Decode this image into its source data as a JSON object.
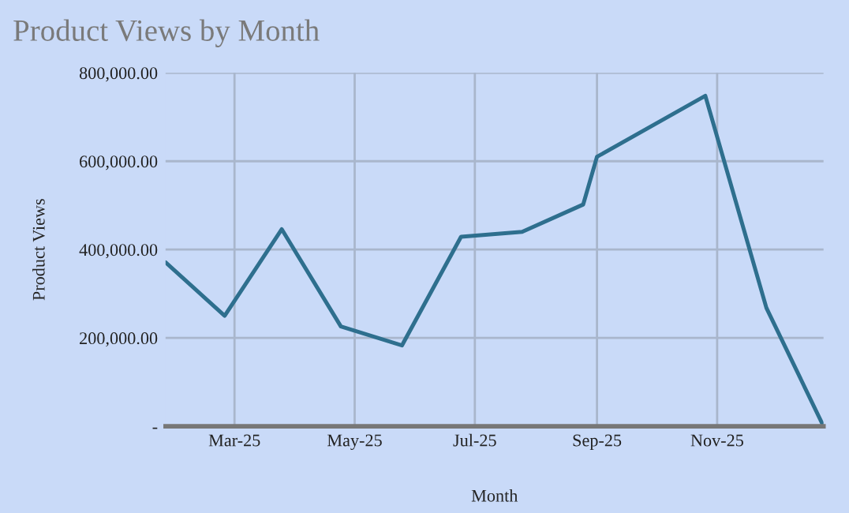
{
  "chart_data": {
    "type": "line",
    "title": "Product Views by Month",
    "xlabel": "Month",
    "ylabel": "Product Views",
    "x": [
      "2025-01-25",
      "2025-02-24",
      "2025-03-25",
      "2025-04-24",
      "2025-05-25",
      "2025-06-24",
      "2025-07-25",
      "2025-08-25",
      "2025-09-01",
      "2025-10-26",
      "2025-11-26",
      "2025-12-25"
    ],
    "series": [
      {
        "color": "#2e6f8e",
        "values": [
          371000,
          250000,
          446000,
          226000,
          183000,
          429000,
          440000,
          502000,
          610000,
          748000,
          268000,
          0
        ]
      }
    ],
    "xlim": [
      "2025-01-25",
      "2025-12-25"
    ],
    "xticks": [
      {
        "value": "2025-03-01",
        "label": "Mar-25"
      },
      {
        "value": "2025-05-01",
        "label": "May-25"
      },
      {
        "value": "2025-07-01",
        "label": "Jul-25"
      },
      {
        "value": "2025-09-01",
        "label": "Sep-25"
      },
      {
        "value": "2025-11-01",
        "label": "Nov-25"
      }
    ],
    "ylim": [
      0,
      800000
    ],
    "yticks": [
      {
        "value": 0,
        "label": "-"
      },
      {
        "value": 200000,
        "label": "200,000.00"
      },
      {
        "value": 400000,
        "label": "400,000.00"
      },
      {
        "value": 600000,
        "label": "600,000.00"
      },
      {
        "value": 800000,
        "label": "800,000.00"
      }
    ],
    "grid": true,
    "marker": "none",
    "line_style": "solid"
  }
}
